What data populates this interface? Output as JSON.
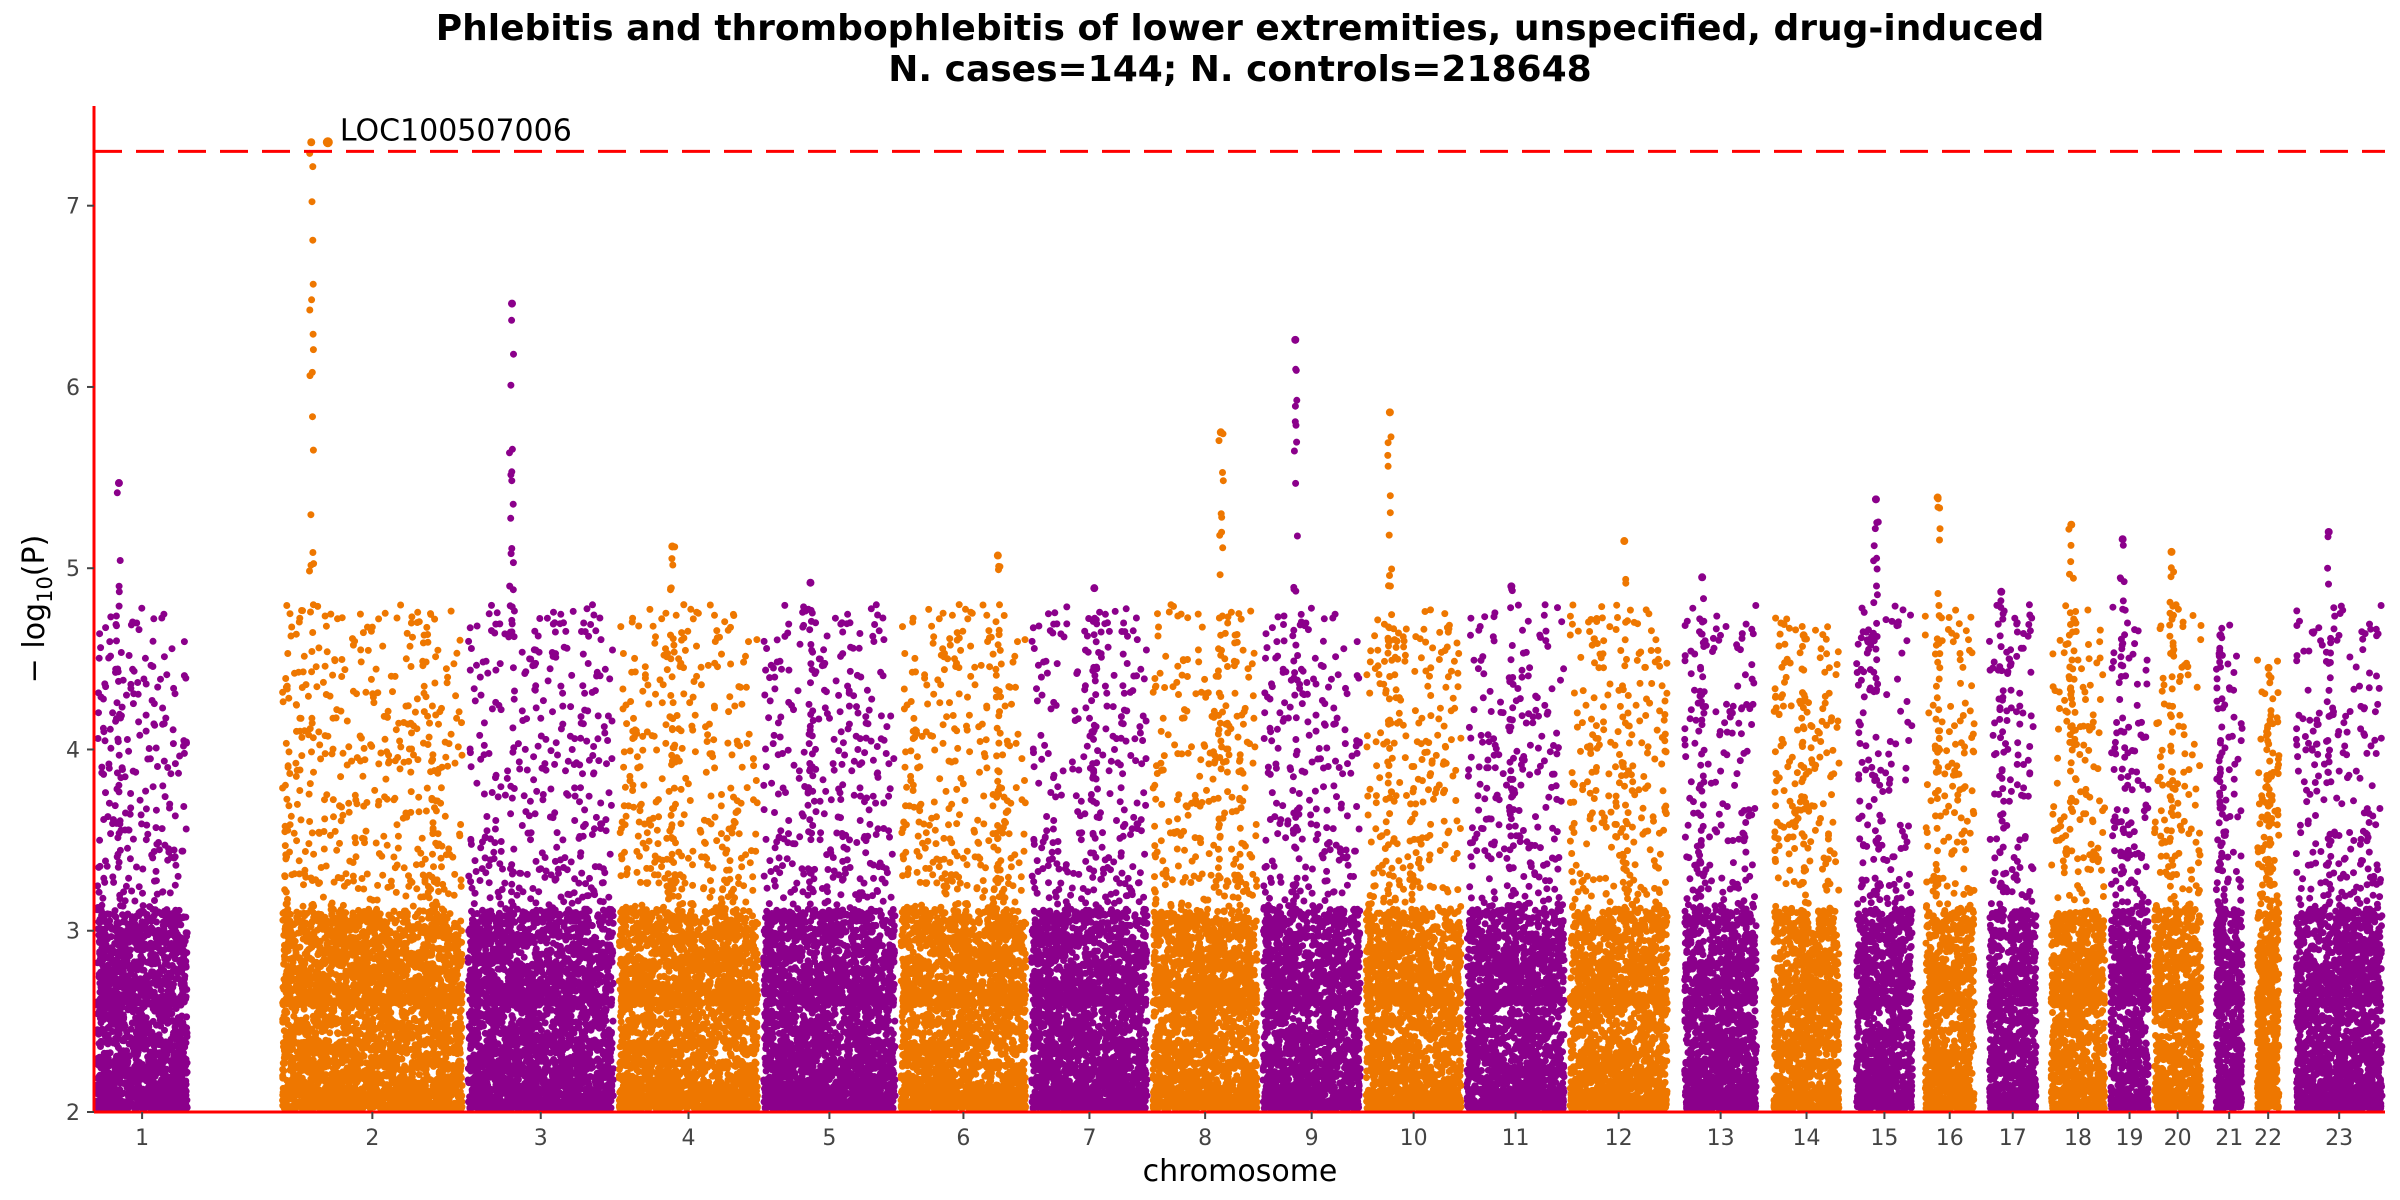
{
  "chart_data": {
    "type": "scatter",
    "title_line1": "Phlebitis and thrombophlebitis of lower extremities, unspecified, drug-induced",
    "title_line2": "N. cases=144; N. controls=218648",
    "xlabel": "chromosome",
    "ylabel_prefix": "− log",
    "ylabel_sub": "10",
    "ylabel_suffix": "(P)",
    "ylim": [
      2,
      7.55
    ],
    "yticks": [
      2,
      3,
      4,
      5,
      6,
      7
    ],
    "ytick_labels": [
      "2",
      "3",
      "4",
      "5",
      "6",
      "7"
    ],
    "threshold": 7.3,
    "colors": {
      "odd": "#8B008B",
      "even": "#EE7700",
      "threshold": "#FF0000",
      "axis": "#FF0000"
    },
    "chromosomes": [
      {
        "label": "1",
        "x0": 0,
        "x1": 0.042,
        "peak": 5.47
      },
      {
        "label": "2",
        "x0": 0.081,
        "x1": 0.162,
        "peak": 7.35
      },
      {
        "label": "3",
        "x0": 0.162,
        "x1": 0.228,
        "peak": 6.46
      },
      {
        "label": "4",
        "x0": 0.228,
        "x1": 0.291,
        "peak": 5.12
      },
      {
        "label": "5",
        "x0": 0.291,
        "x1": 0.351,
        "peak": 4.92
      },
      {
        "label": "6",
        "x0": 0.351,
        "x1": 0.408,
        "peak": 5.07
      },
      {
        "label": "7",
        "x0": 0.408,
        "x1": 0.461,
        "peak": 4.89
      },
      {
        "label": "8",
        "x0": 0.461,
        "x1": 0.509,
        "peak": 5.75
      },
      {
        "label": "9",
        "x0": 0.509,
        "x1": 0.554,
        "peak": 6.26
      },
      {
        "label": "10",
        "x0": 0.554,
        "x1": 0.598,
        "peak": 5.86
      },
      {
        "label": "11",
        "x0": 0.598,
        "x1": 0.643,
        "peak": 4.9
      },
      {
        "label": "12",
        "x0": 0.643,
        "x1": 0.688,
        "peak": 5.15
      },
      {
        "label": "13",
        "x0": 0.693,
        "x1": 0.727,
        "peak": 4.95
      },
      {
        "label": "14",
        "x0": 0.732,
        "x1": 0.763,
        "peak": 4.63
      },
      {
        "label": "15",
        "x0": 0.768,
        "x1": 0.795,
        "peak": 5.38
      },
      {
        "label": "16",
        "x0": 0.798,
        "x1": 0.822,
        "peak": 5.39
      },
      {
        "label": "17",
        "x0": 0.826,
        "x1": 0.849,
        "peak": 4.87
      },
      {
        "label": "18",
        "x0": 0.853,
        "x1": 0.879,
        "peak": 5.24
      },
      {
        "label": "19",
        "x0": 0.879,
        "x1": 0.898,
        "peak": 5.16
      },
      {
        "label": "20",
        "x0": 0.898,
        "x1": 0.921,
        "peak": 5.09
      },
      {
        "label": "21",
        "x0": 0.925,
        "x1": 0.939,
        "peak": 4.63
      },
      {
        "label": "22",
        "x0": 0.943,
        "x1": 0.955,
        "peak": 4.45
      },
      {
        "label": "23",
        "x0": 0.96,
        "x1": 1.0,
        "peak": 5.2
      }
    ],
    "annotations": [
      {
        "text": "LOC100507006",
        "chrom": "2",
        "pos": 0.26,
        "y": 7.35
      }
    ]
  }
}
